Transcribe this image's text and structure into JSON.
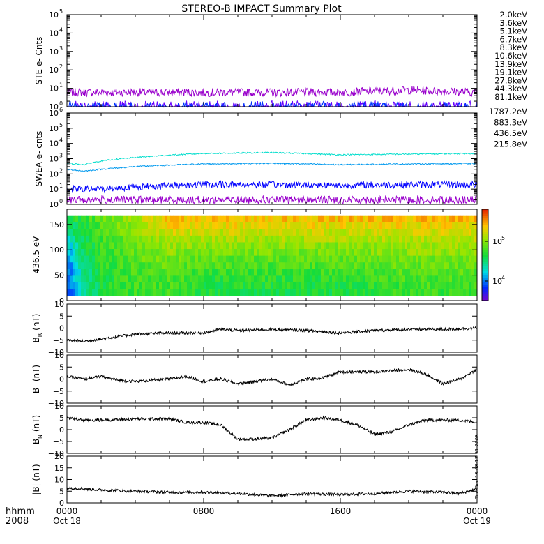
{
  "title": "STEREO-B IMPACT Summary Plot",
  "timestamp": "Tue Dec 13 08:17:51 2008",
  "time_axis": {
    "hhmm_label": "hhmm",
    "year_label": "2008",
    "ticks": [
      {
        "t": 0,
        "top": "0000",
        "bottom": "Oct 18"
      },
      {
        "t": 8,
        "top": "0800",
        "bottom": ""
      },
      {
        "t": 16,
        "top": "1600",
        "bottom": ""
      },
      {
        "t": 24,
        "top": "0000",
        "bottom": "Oct 19"
      }
    ]
  },
  "colors": {
    "ste": [
      "#9900cc",
      "#6600ff",
      "#0033ff",
      "#00aaee",
      "#00cccc",
      "#00cc66",
      "#33cc00",
      "#aacc00",
      "#ffbb00",
      "#ff8800",
      "#dd2200"
    ],
    "swea": [
      "#9900cc",
      "#0000ff",
      "#0099ee",
      "#00ddcc"
    ]
  },
  "chart_data": [
    {
      "type": "line",
      "panel": "ste",
      "ylabel": "STE e- Cnts",
      "yscale": "log",
      "ylim": [
        1,
        100000
      ],
      "yticks": [
        "10",
        "10",
        "10",
        "10",
        "10",
        "10"
      ],
      "ytick_exps": [
        "0",
        "1",
        "2",
        "3",
        "4",
        "5"
      ],
      "xlim": [
        0,
        24
      ],
      "series": [
        {
          "name": "2.0keV",
          "x": [
            0,
            4,
            8,
            12,
            16,
            20,
            24
          ],
          "values": [
            6,
            6,
            6,
            6,
            6,
            8,
            6
          ]
        },
        {
          "name": "3.6keV",
          "x": [
            0,
            24
          ],
          "values": [
            1.2,
            1.2
          ]
        },
        {
          "name": "5.1keV",
          "x": [
            0,
            24
          ],
          "values": [
            1.1,
            1.1
          ]
        },
        {
          "name": "6.7keV",
          "x": [],
          "values": []
        },
        {
          "name": "8.3keV",
          "x": [],
          "values": []
        },
        {
          "name": "10.6keV",
          "x": [],
          "values": []
        },
        {
          "name": "13.9keV",
          "x": [],
          "values": []
        },
        {
          "name": "19.1keV",
          "x": [],
          "values": []
        },
        {
          "name": "27.8keV",
          "x": [],
          "values": []
        },
        {
          "name": "44.3keV",
          "x": [],
          "values": []
        },
        {
          "name": "81.1keV",
          "x": [],
          "values": []
        }
      ]
    },
    {
      "type": "line",
      "panel": "swea",
      "ylabel": "SWEA e- cnts",
      "yscale": "log",
      "ylim": [
        1,
        1000000
      ],
      "yticks": [
        "10",
        "10",
        "10",
        "10",
        "10",
        "10",
        "10"
      ],
      "ytick_exps": [
        "0",
        "1",
        "2",
        "3",
        "4",
        "5",
        "6"
      ],
      "xlim": [
        0,
        24
      ],
      "series": [
        {
          "name": "1787.2eV",
          "x": [
            0,
            24
          ],
          "values": [
            2,
            2
          ]
        },
        {
          "name": "883.3eV",
          "x": [
            0,
            2,
            4,
            8,
            12,
            16,
            20,
            24
          ],
          "values": [
            10,
            10,
            14,
            20,
            20,
            18,
            20,
            20
          ]
        },
        {
          "name": "436.5eV",
          "x": [
            0,
            1,
            2,
            4,
            8,
            12,
            16,
            20,
            24
          ],
          "values": [
            200,
            150,
            200,
            300,
            450,
            500,
            400,
            450,
            480
          ]
        },
        {
          "name": "215.8eV",
          "x": [
            0,
            1,
            2,
            4,
            8,
            12,
            16,
            20,
            24
          ],
          "values": [
            500,
            400,
            700,
            1200,
            2200,
            2500,
            1800,
            2000,
            2200
          ]
        }
      ]
    },
    {
      "type": "heatmap",
      "panel": "pad",
      "ylabel": "436.5 eV",
      "ylim": [
        0,
        180
      ],
      "yticks": [
        "0",
        "50",
        "100",
        "150"
      ],
      "colorbar_ticks": [
        "10",
        "10"
      ],
      "colorbar_exps": [
        "4",
        "5"
      ],
      "xlim": [
        0,
        24
      ],
      "description_values": {
        "x": [
          0,
          1,
          2,
          4,
          6,
          8,
          12,
          16,
          20,
          24
        ],
        "low_pitch_level": [
          0.15,
          0.4,
          0.5,
          0.55,
          0.55,
          0.5,
          0.5,
          0.5,
          0.55,
          0.55
        ],
        "high_pitch_level": [
          0.5,
          0.55,
          0.6,
          0.7,
          0.85,
          0.85,
          0.85,
          0.85,
          0.85,
          0.85
        ]
      }
    },
    {
      "type": "line",
      "panel": "br",
      "ylabel": "B",
      "ylabel_sub": "R",
      "ylabel_unit": "(nT)",
      "ylim": [
        -10,
        10
      ],
      "yticks": [
        "10",
        "5",
        "0",
        "−5",
        "−10"
      ],
      "xlim": [
        0,
        24
      ],
      "series": [
        {
          "name": "BR",
          "x": [
            0,
            1,
            2,
            4,
            6,
            8,
            9,
            10,
            12,
            14,
            16,
            18,
            20,
            22,
            24
          ],
          "values": [
            -5,
            -5.5,
            -4.5,
            -2.5,
            -2,
            -2,
            -0.5,
            -1,
            -0.5,
            -1,
            -2,
            -1,
            -0.5,
            -0.5,
            0
          ]
        }
      ]
    },
    {
      "type": "line",
      "panel": "bt",
      "ylabel": "B",
      "ylabel_sub": "T",
      "ylabel_unit": "(nT)",
      "ylim": [
        -10,
        10
      ],
      "yticks": [
        "10",
        "5",
        "0",
        "−5",
        "−10"
      ],
      "xlim": [
        0,
        24
      ],
      "series": [
        {
          "name": "BT",
          "x": [
            0,
            1,
            2,
            3,
            4,
            5,
            6,
            7,
            8,
            9,
            10,
            11,
            12,
            13,
            14,
            15,
            16,
            17,
            18,
            19,
            20,
            21,
            22,
            23,
            24
          ],
          "values": [
            1,
            0,
            1,
            -0.5,
            -1,
            -0.5,
            0,
            1,
            -1,
            0,
            -2,
            -1,
            0,
            -2.5,
            0,
            0.5,
            3,
            3,
            3,
            3.5,
            4,
            2,
            -2,
            0,
            4
          ]
        }
      ]
    },
    {
      "type": "line",
      "panel": "bn",
      "ylabel": "B",
      "ylabel_sub": "N",
      "ylabel_unit": "(nT)",
      "ylim": [
        -10,
        10
      ],
      "yticks": [
        "10",
        "5",
        "0",
        "−5",
        "−10"
      ],
      "xlim": [
        0,
        24
      ],
      "series": [
        {
          "name": "BN",
          "x": [
            0,
            1,
            2,
            4,
            6,
            7,
            8,
            9,
            10,
            11,
            12,
            13,
            14,
            15,
            16,
            17,
            18,
            19,
            20,
            21,
            22,
            23,
            24
          ],
          "values": [
            5,
            4,
            4,
            4.5,
            4.5,
            3,
            3,
            2,
            -4,
            -4,
            -3.5,
            0,
            4,
            5,
            4,
            2,
            -2,
            -1,
            2,
            4,
            4,
            4,
            3
          ]
        }
      ]
    },
    {
      "type": "line",
      "panel": "bmag",
      "ylabel": "|B| (nT)",
      "ylim": [
        0,
        20
      ],
      "yticks": [
        "20",
        "15",
        "10",
        "5",
        "0"
      ],
      "xlim": [
        0,
        24
      ],
      "series": [
        {
          "name": "|B|",
          "x": [
            0,
            1,
            2,
            4,
            6,
            8,
            10,
            12,
            14,
            16,
            18,
            20,
            22,
            23,
            24
          ],
          "values": [
            6.5,
            6,
            5.5,
            5,
            4.5,
            4.5,
            4,
            3,
            4,
            3.5,
            4,
            5,
            4.5,
            4,
            6
          ]
        }
      ]
    }
  ]
}
